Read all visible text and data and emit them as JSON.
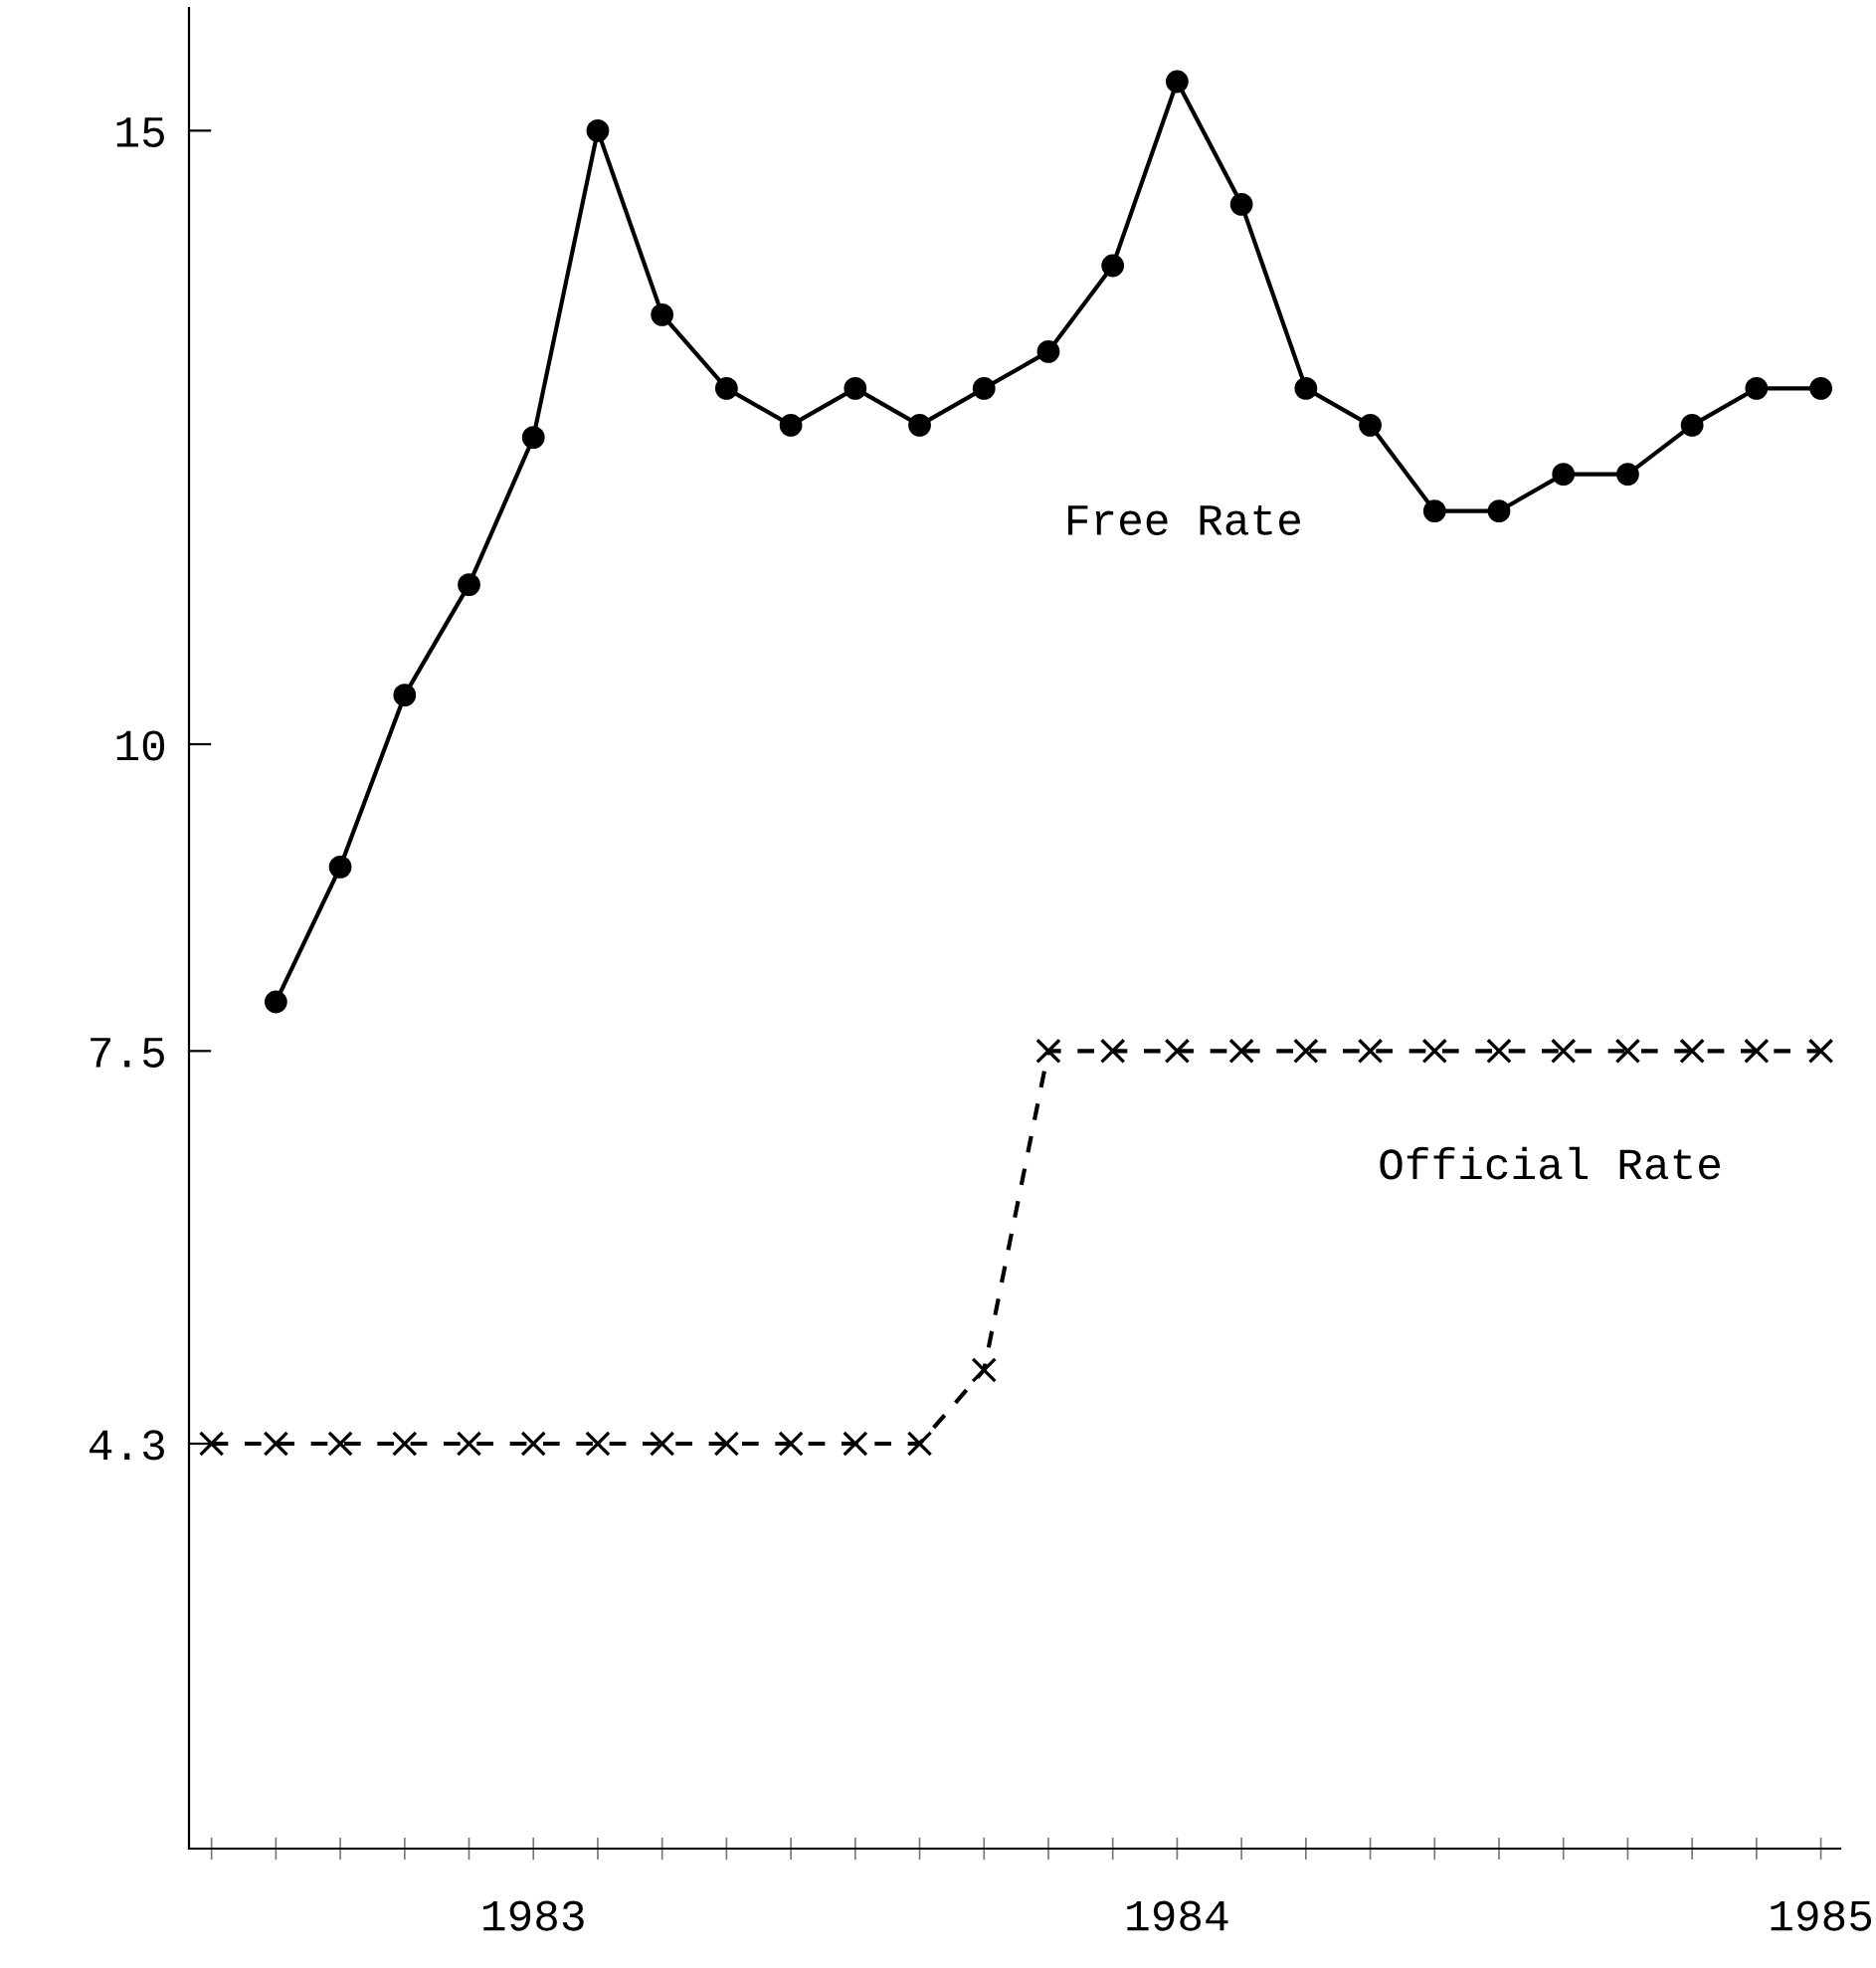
{
  "chart_data": {
    "type": "line",
    "categories": [
      null,
      null,
      null,
      null,
      null,
      "1983",
      null,
      null,
      null,
      null,
      null,
      null,
      null,
      null,
      null,
      "1984",
      null,
      null,
      null,
      null,
      null,
      null,
      null,
      null,
      null,
      "1985"
    ],
    "series": [
      {
        "name": "Free Rate",
        "color": "#000000",
        "marker": "circle",
        "line_style": "solid",
        "values": [
          null,
          7.9,
          9.0,
          10.4,
          11.3,
          12.5,
          15.0,
          13.5,
          12.9,
          12.6,
          12.9,
          12.6,
          12.9,
          13.2,
          13.9,
          15.4,
          14.4,
          12.9,
          12.6,
          11.9,
          11.9,
          12.2,
          12.2,
          12.6,
          12.9,
          12.9
        ]
      },
      {
        "name": "Official Rate",
        "color": "#000000",
        "marker": "cross",
        "line_style": "dashed",
        "values": [
          4.3,
          4.3,
          4.3,
          4.3,
          4.3,
          4.3,
          4.3,
          4.3,
          4.3,
          4.3,
          4.3,
          4.3,
          4.9,
          7.5,
          7.5,
          7.5,
          7.5,
          7.5,
          7.5,
          7.5,
          7.5,
          7.5,
          7.5,
          7.5,
          7.5,
          7.5
        ]
      }
    ],
    "ylim": [
      1,
      16
    ],
    "yticks": [
      4.3,
      7.5,
      10,
      15
    ],
    "grid": false,
    "legend": false
  }
}
